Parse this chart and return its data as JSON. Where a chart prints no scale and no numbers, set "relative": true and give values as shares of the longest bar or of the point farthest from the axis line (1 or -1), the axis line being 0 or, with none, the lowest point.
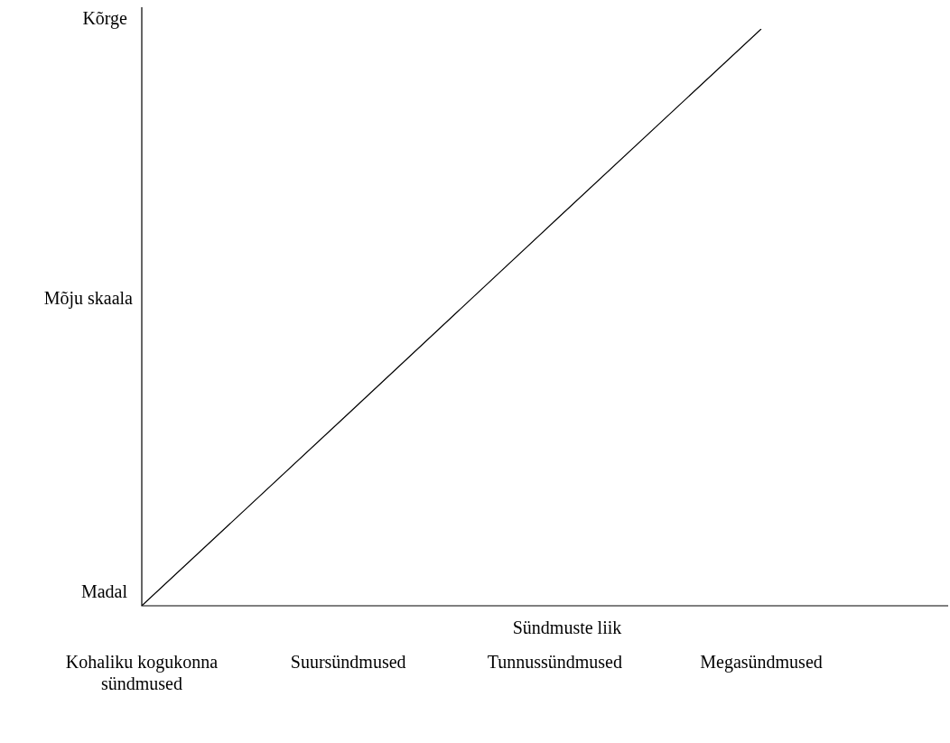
{
  "chart_data": {
    "type": "line",
    "xlabel": "Sündmuste liik",
    "ylabel": "Mõju skaala",
    "relative": true,
    "grid": false,
    "legend": false,
    "marker": "none",
    "line_style": "solid",
    "tick_labels": "x",
    "annotations": [
      "Kõrge",
      "Madal"
    ],
    "categories": [
      "Kohaliku kogukonna sündmused",
      "Suursündmused",
      "Tunnussündmused",
      "Megasündmused"
    ],
    "series": [
      {
        "color": "#000000",
        "values": [
          0,
          0.333,
          0.667,
          1
        ]
      }
    ]
  }
}
